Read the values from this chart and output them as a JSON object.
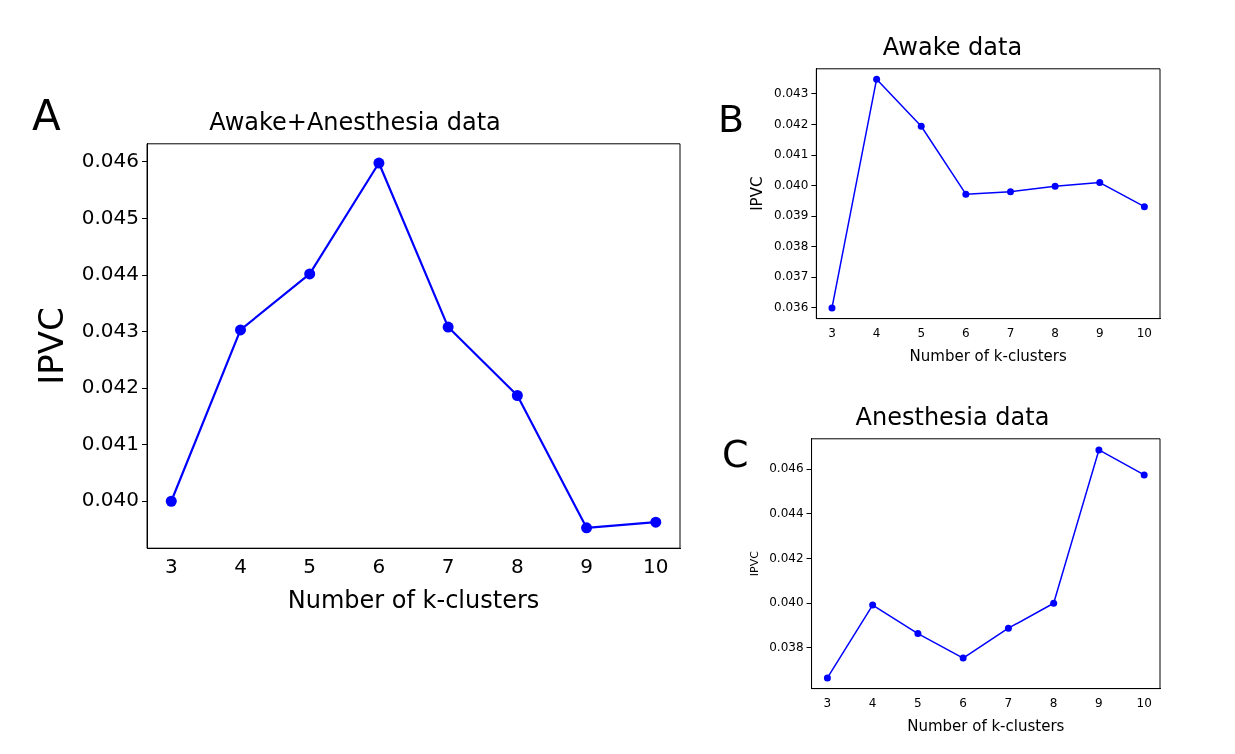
{
  "chart_data": [
    {
      "type": "line",
      "title": "Awake+Anesthesia data",
      "xlabel": "Number of k-clusters",
      "ylabel": "IPVC",
      "annotations": [
        "A"
      ],
      "x": [
        3,
        4,
        5,
        6,
        7,
        8,
        9,
        10
      ],
      "series": [
        {
          "color": "#0000ff",
          "values": [
            0.04,
            0.04303,
            0.04402,
            0.04598,
            0.04308,
            0.04187,
            0.03953,
            0.03963
          ]
        }
      ],
      "xlim": [
        2.65,
        10.35
      ],
      "xticks": [
        3,
        4,
        5,
        6,
        7,
        8,
        9,
        10
      ],
      "ylim": [
        0.03917,
        0.04632
      ],
      "yticks": [
        {
          "value": 0.04,
          "label": "0.040"
        },
        {
          "value": 0.041,
          "label": "0.041"
        },
        {
          "value": 0.042,
          "label": "0.042"
        },
        {
          "value": 0.043,
          "label": "0.043"
        },
        {
          "value": 0.044,
          "label": "0.044"
        },
        {
          "value": 0.045,
          "label": "0.045"
        },
        {
          "value": 0.046,
          "label": "0.046"
        }
      ],
      "grid": false,
      "legend": false,
      "marker": "circle",
      "line_style": "solid"
    },
    {
      "type": "line",
      "title": "Awake data",
      "xlabel": "Number of k-clusters",
      "ylabel": "IPVC",
      "annotations": [
        "B"
      ],
      "x": [
        3,
        4,
        5,
        6,
        7,
        8,
        9,
        10
      ],
      "series": [
        {
          "color": "#0000ff",
          "values": [
            0.036,
            0.04348,
            0.04194,
            0.03972,
            0.0398,
            0.03998,
            0.0401,
            0.03931
          ]
        }
      ],
      "xlim": [
        2.65,
        10.35
      ],
      "xticks": [
        3,
        4,
        5,
        6,
        7,
        8,
        9,
        10
      ],
      "ylim": [
        0.03565,
        0.04382
      ],
      "yticks": [
        {
          "value": 0.036,
          "label": "0.036"
        },
        {
          "value": 0.037,
          "label": "0.037"
        },
        {
          "value": 0.038,
          "label": "0.038"
        },
        {
          "value": 0.039,
          "label": "0.039"
        },
        {
          "value": 0.04,
          "label": "0.040"
        },
        {
          "value": 0.041,
          "label": "0.041"
        },
        {
          "value": 0.042,
          "label": "0.042"
        },
        {
          "value": 0.043,
          "label": "0.043"
        }
      ],
      "grid": false,
      "legend": false,
      "marker": "circle",
      "line_style": "solid"
    },
    {
      "type": "line",
      "title": "Anesthesia data",
      "xlabel": "Number of k-clusters",
      "ylabel": "IPVC",
      "annotations": [
        "C"
      ],
      "x": [
        3,
        4,
        5,
        6,
        7,
        8,
        9,
        10
      ],
      "series": [
        {
          "color": "#0000ff",
          "values": [
            0.03664,
            0.03991,
            0.03863,
            0.03753,
            0.03887,
            0.03999,
            0.04687,
            0.04575
          ]
        }
      ],
      "xlim": [
        2.65,
        10.35
      ],
      "xticks": [
        3,
        4,
        5,
        6,
        7,
        8,
        9,
        10
      ],
      "ylim": [
        0.03616,
        0.04737
      ],
      "yticks": [
        {
          "value": 0.038,
          "label": "0.038"
        },
        {
          "value": 0.04,
          "label": "0.040"
        },
        {
          "value": 0.042,
          "label": "0.042"
        },
        {
          "value": 0.044,
          "label": "0.044"
        },
        {
          "value": 0.046,
          "label": "0.046"
        }
      ],
      "grid": false,
      "legend": false,
      "marker": "circle",
      "line_style": "solid"
    }
  ]
}
